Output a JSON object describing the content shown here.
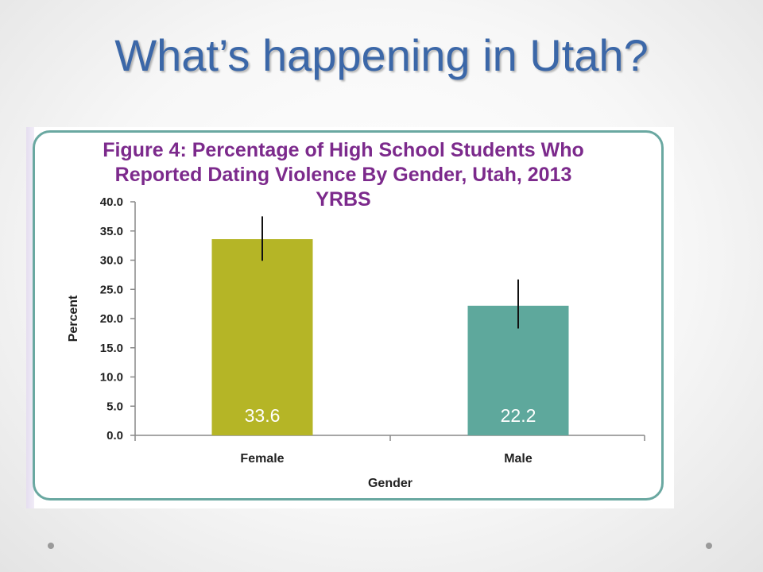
{
  "slide": {
    "title": "What’s happening in Utah?"
  },
  "chart_data": {
    "type": "bar",
    "title": "Figure 4:  Percentage of High School Students Who\nReported Dating Violence By Gender, Utah, 2013\nYRBS",
    "xlabel": "Gender",
    "ylabel": "Percent",
    "categories": [
      "Female",
      "Male"
    ],
    "values": [
      33.6,
      22.2
    ],
    "data_labels": [
      "33.6",
      "22.2"
    ],
    "error_bars": [
      {
        "low": 29.9,
        "high": 37.5
      },
      {
        "low": 18.3,
        "high": 26.7
      }
    ],
    "ylim": [
      0,
      40
    ],
    "yticks": [
      "0.0",
      "5.0",
      "10.0",
      "15.0",
      "20.0",
      "25.0",
      "30.0",
      "35.0",
      "40.0"
    ],
    "grid": false,
    "legend": "none",
    "colors": [
      "#b5b526",
      "#5ea89c"
    ],
    "title_color": "#7c2a8c",
    "border_color": "#6aa8a1"
  }
}
